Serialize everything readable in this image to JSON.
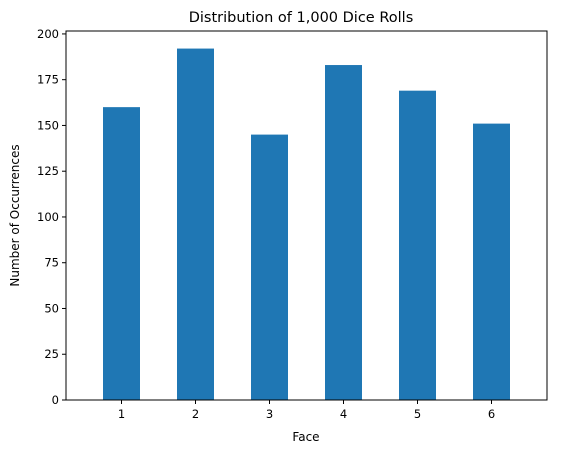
{
  "chart_data": {
    "type": "bar",
    "title": "Distribution of 1,000 Dice Rolls",
    "xlabel": "Face",
    "ylabel": "Number of Occurrences",
    "categories": [
      "1",
      "2",
      "3",
      "4",
      "5",
      "6"
    ],
    "values": [
      160,
      192,
      145,
      183,
      169,
      151
    ],
    "ylim": [
      0,
      201.6
    ],
    "yticks": [
      0,
      25,
      50,
      75,
      100,
      125,
      150,
      175,
      200
    ],
    "grid": false,
    "legend": "none",
    "bar_color": "#1f77b4"
  }
}
